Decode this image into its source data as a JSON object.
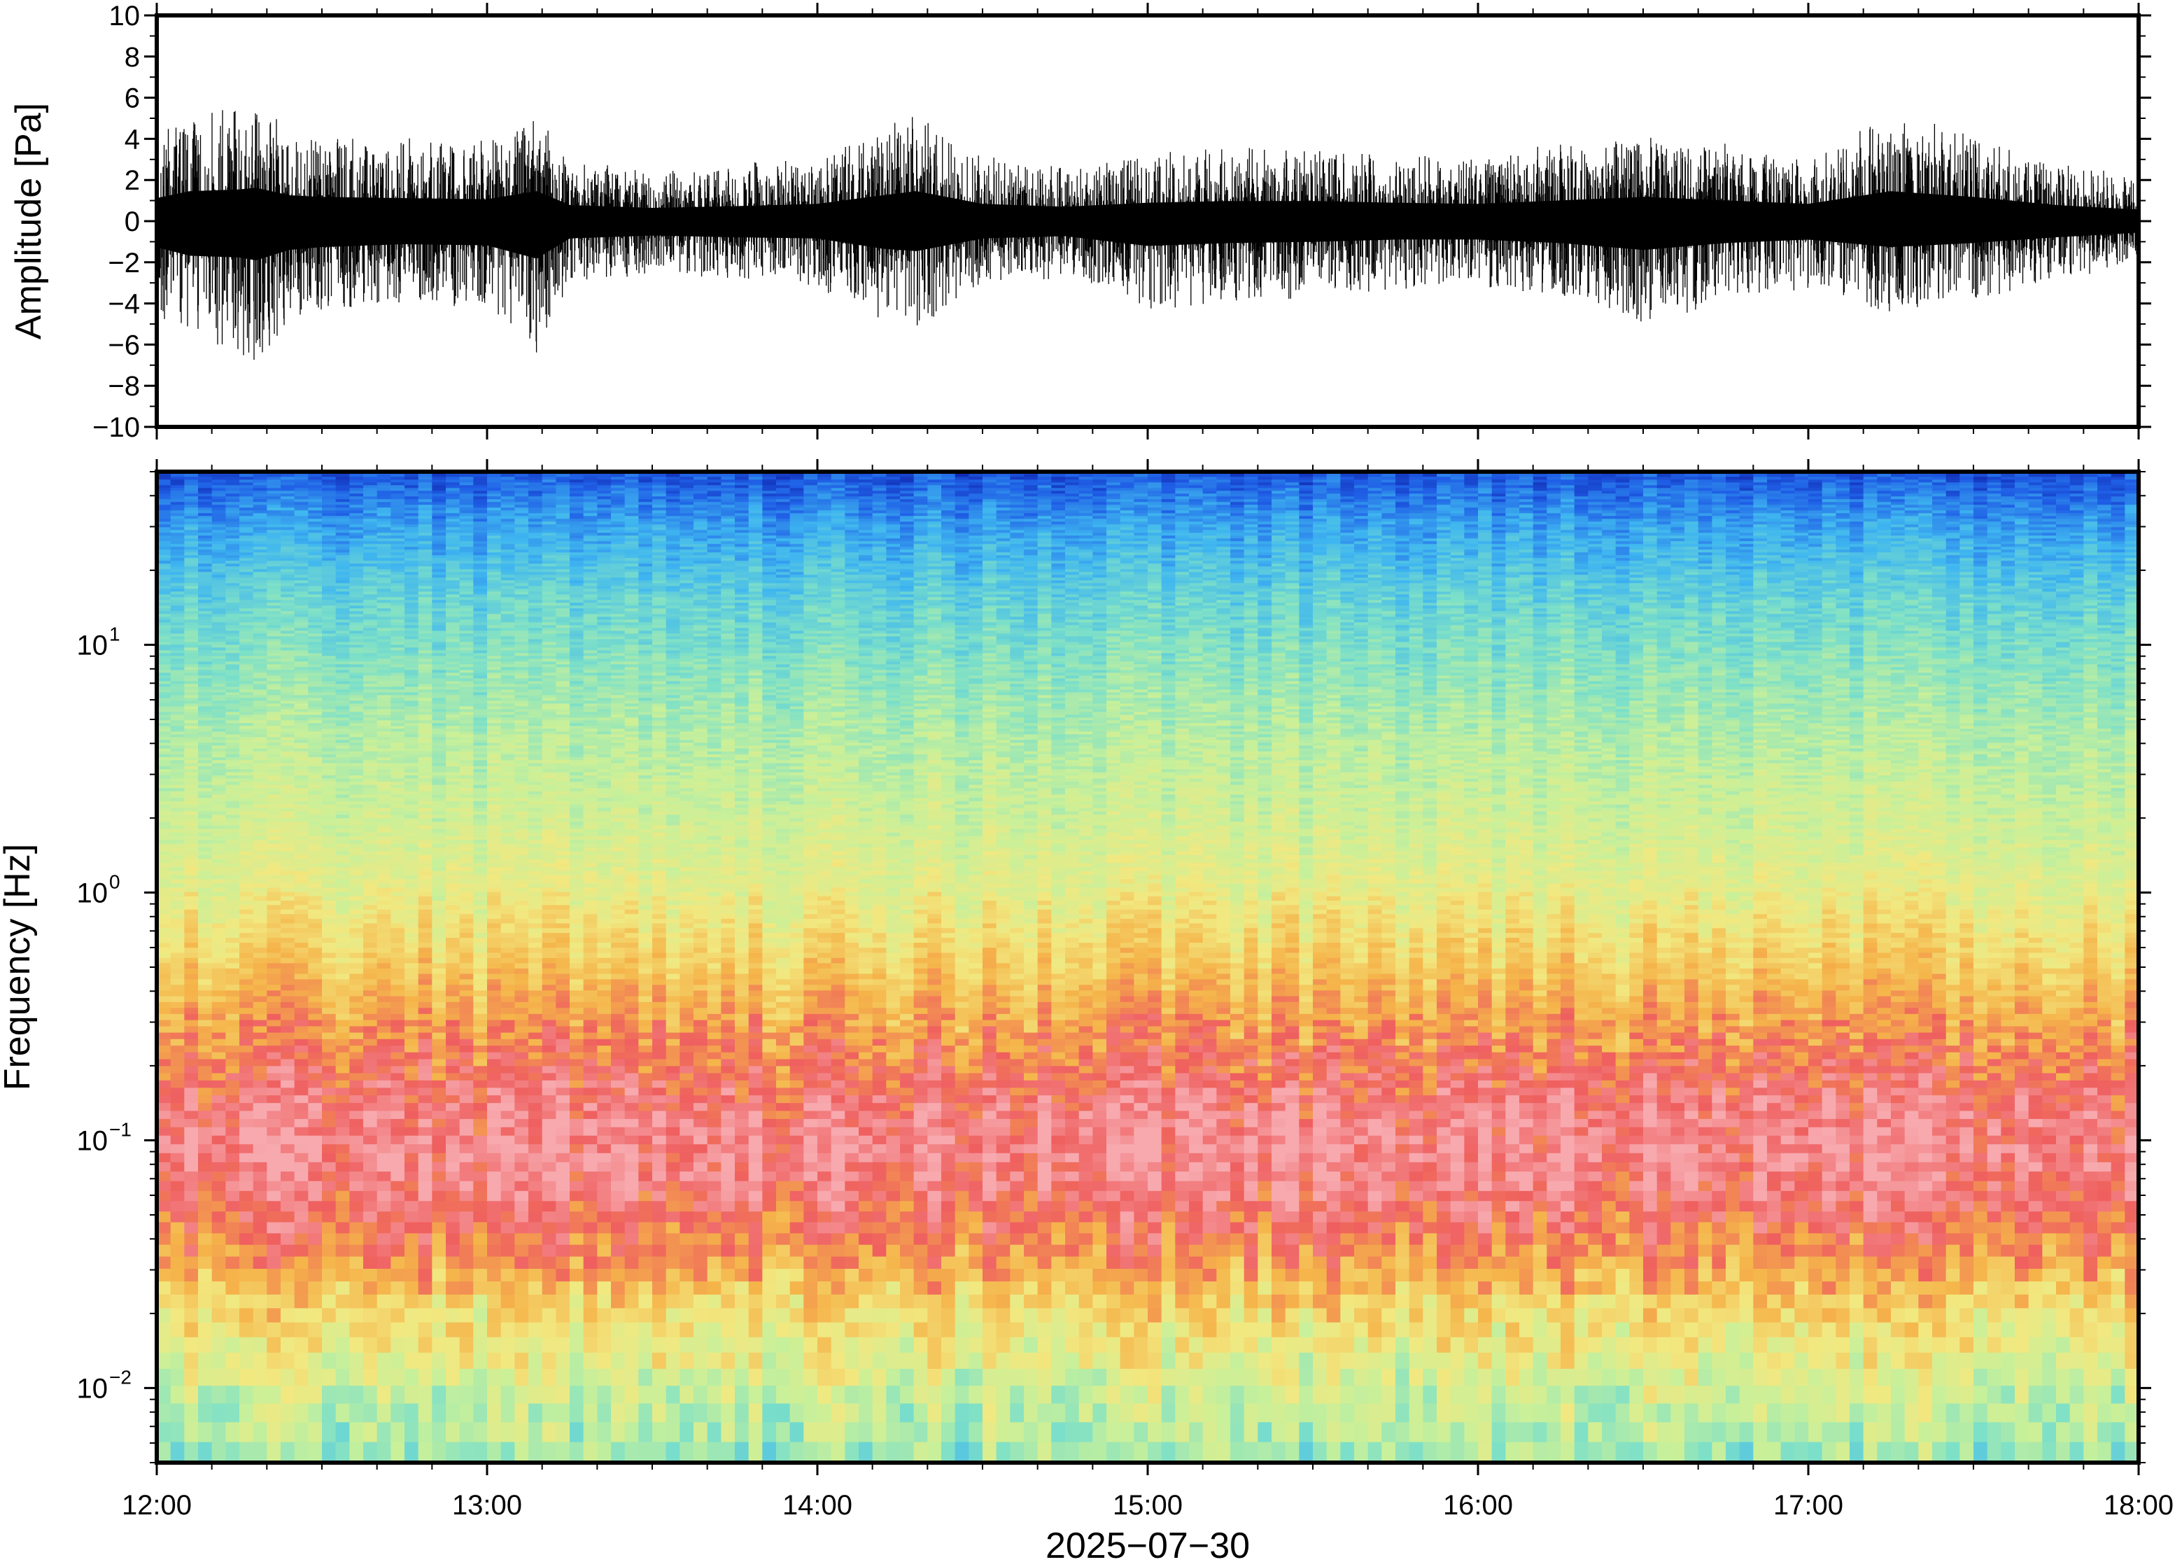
{
  "chart_data": [
    {
      "type": "line",
      "panel": "waveform",
      "ylabel": "Amplitude [Pa]",
      "ylim": [
        -10,
        10
      ],
      "yticks": [
        10,
        8,
        6,
        4,
        2,
        0,
        -2,
        -4,
        -6,
        -8,
        -10
      ],
      "ytick_labels": [
        "10",
        "8",
        "6",
        "4",
        "2",
        "0",
        "−2",
        "−4",
        "−6",
        "−8",
        "−10"
      ],
      "xlim": [
        "12:00",
        "18:00"
      ],
      "envelope": {
        "hours": [
          12.0,
          12.1,
          12.25,
          12.3,
          12.4,
          12.5,
          12.75,
          13.0,
          13.15,
          13.25,
          13.5,
          13.75,
          14.0,
          14.2,
          14.3,
          14.5,
          14.75,
          15.0,
          15.25,
          15.5,
          15.75,
          16.0,
          16.25,
          16.5,
          16.75,
          17.0,
          17.25,
          17.5,
          17.75,
          18.0
        ],
        "peak_max": [
          4.0,
          5.2,
          5.5,
          5.8,
          4.5,
          4.2,
          4.0,
          3.8,
          5.2,
          2.8,
          2.3,
          2.6,
          3.0,
          4.5,
          5.2,
          3.0,
          2.5,
          3.2,
          3.5,
          3.5,
          3.2,
          3.0,
          3.6,
          4.2,
          3.6,
          3.0,
          5.2,
          4.2,
          2.8,
          2.0
        ],
        "peak_min": [
          -4.5,
          -6.0,
          -6.3,
          -6.8,
          -5.0,
          -4.5,
          -4.0,
          -4.2,
          -6.5,
          -3.0,
          -2.5,
          -2.8,
          -3.0,
          -4.8,
          -5.2,
          -3.0,
          -2.6,
          -4.3,
          -3.8,
          -3.6,
          -3.2,
          -3.2,
          -3.8,
          -5.0,
          -3.8,
          -3.2,
          -4.5,
          -3.8,
          -2.8,
          -2.0
        ]
      }
    },
    {
      "type": "heatmap",
      "panel": "spectrogram",
      "ylabel": "Frequency [Hz]",
      "y_scale": "log",
      "ylim": [
        0.005,
        50
      ],
      "yticks": [
        0.01,
        0.1,
        1,
        10
      ],
      "ytick_labels": [
        {
          "base": "10",
          "exp": "−2"
        },
        {
          "base": "10",
          "exp": "−1"
        },
        {
          "base": "10",
          "exp": "0"
        },
        {
          "base": "10",
          "exp": "1"
        }
      ],
      "xlabel": "2025−07−30",
      "xlim": [
        "12:00",
        "18:00"
      ],
      "xticks": [
        "12:00",
        "13:00",
        "14:00",
        "15:00",
        "16:00",
        "17:00",
        "18:00"
      ],
      "colormap": [
        "#0a1aa0",
        "#1f5fe6",
        "#3fb6f0",
        "#7de0c8",
        "#c8f09a",
        "#f2e880",
        "#f5b44a",
        "#ef5f5f",
        "#f7a9ae"
      ],
      "relative_power_profile": {
        "freq_hz": [
          0.005,
          0.008,
          0.012,
          0.02,
          0.03,
          0.05,
          0.08,
          0.12,
          0.2,
          0.35,
          0.6,
          1,
          2,
          4,
          8,
          15,
          30,
          50
        ],
        "level": [
          0.44,
          0.5,
          0.58,
          0.66,
          0.78,
          0.88,
          0.95,
          0.93,
          0.84,
          0.75,
          0.66,
          0.58,
          0.52,
          0.47,
          0.4,
          0.33,
          0.22,
          0.1
        ]
      }
    }
  ]
}
